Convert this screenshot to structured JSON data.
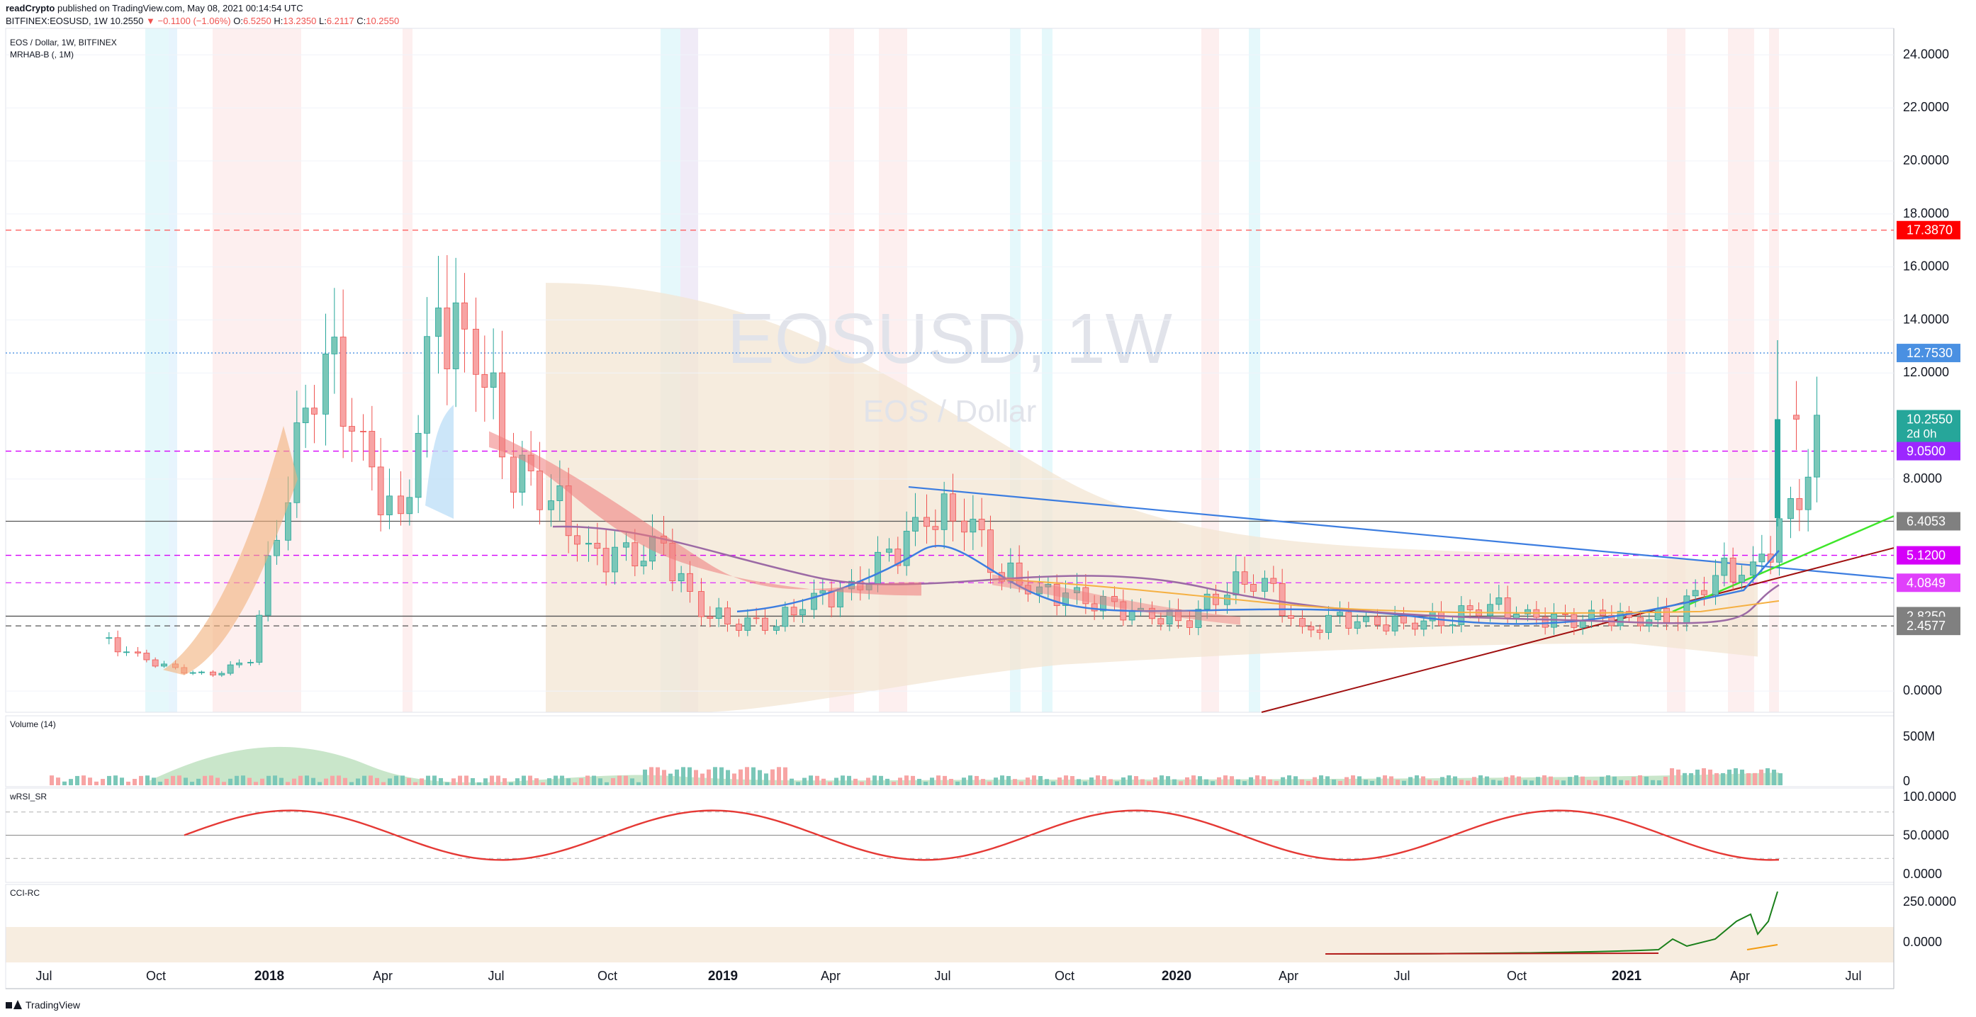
{
  "header": {
    "publisher": "readCrypto",
    "published_text": "published on TradingView.com, May 08, 2021 00:14:54 UTC",
    "symbol": "BITFINEX:EOSUSD, 1W",
    "last": "10.2550",
    "change": "▼ −0.1100 (−1.06%)",
    "o_label": "O:",
    "o": "6.5250",
    "h_label": "H:",
    "h": "13.2350",
    "l_label": "L:",
    "l": "6.2117",
    "c_label": "C:",
    "c": "10.2550"
  },
  "legend": {
    "title": "EOS / Dollar, 1W, BITFINEX",
    "indicator": "MRHAB-B (, 1M)"
  },
  "watermark": {
    "symbol": "EOSUSD, 1W",
    "name": "EOS / Dollar"
  },
  "panes": {
    "volume_title": "Volume (14)",
    "wrsi_title": "wRSI_SR",
    "cci_title": "CCI-RC"
  },
  "price_axis": {
    "ticks": [
      "24.0000",
      "22.0000",
      "20.0000",
      "18.0000",
      "16.0000",
      "14.0000",
      "12.0000",
      "8.0000",
      "0.0000"
    ],
    "ticks_values": [
      24,
      22,
      20,
      18,
      16,
      14,
      12,
      8,
      0
    ]
  },
  "time_axis": {
    "labels": [
      "Jul",
      "Oct",
      "2018",
      "Apr",
      "Jul",
      "Oct",
      "2019",
      "Apr",
      "Jul",
      "Oct",
      "2020",
      "Apr",
      "Jul",
      "Oct",
      "2021",
      "Apr",
      "Jul"
    ]
  },
  "price_labels": [
    {
      "text": "17.3870",
      "value": 17.387,
      "color": "#ff0000"
    },
    {
      "text": "12.7530",
      "value": 12.753,
      "color": "#4a90e2"
    },
    {
      "text": "10.2550",
      "sub": "2d 0h",
      "value": 10.255,
      "color": "#26a69a"
    },
    {
      "text": "9.0500",
      "value": 9.05,
      "color": "#9c27ff"
    },
    {
      "text": "6.4053",
      "value": 6.4053,
      "color": "#808080"
    },
    {
      "text": "5.1200",
      "value": 5.12,
      "color": "#d500f9"
    },
    {
      "text": "4.0849",
      "value": 4.0849,
      "color": "#e040fb"
    },
    {
      "text": "2.8250",
      "value": 2.825,
      "color": "#808080"
    },
    {
      "text": "2.4577",
      "value": 2.4577,
      "color": "#808080"
    }
  ],
  "volume_axis": [
    "500M",
    "0"
  ],
  "wrsi_axis": [
    "100.0000",
    "50.0000",
    "0.0000"
  ],
  "cci_axis": [
    "250.0000",
    "0.0000"
  ],
  "footer": {
    "brand": "TradingView"
  },
  "chart_data": {
    "type": "candlestick",
    "title": "EOS / Dollar, 1W, BITFINEX",
    "timeframe": "1W",
    "x_range": [
      "2017-07",
      "2021-07"
    ],
    "ylim": [
      -0.8,
      25
    ],
    "log_scale": false,
    "series": [
      {
        "name": "EOSUSD weekly close (approx.)",
        "x": [
          "2017-07",
          "2017-08",
          "2017-09",
          "2017-10",
          "2017-11",
          "2017-12",
          "2018-01",
          "2018-02",
          "2018-03",
          "2018-04",
          "2018-05",
          "2018-06",
          "2018-07",
          "2018-08",
          "2018-09",
          "2018-10",
          "2018-11",
          "2018-12",
          "2019-01",
          "2019-02",
          "2019-03",
          "2019-04",
          "2019-05",
          "2019-06",
          "2019-07",
          "2019-08",
          "2019-09",
          "2019-10",
          "2019-11",
          "2019-12",
          "2020-01",
          "2020-02",
          "2020-03",
          "2020-04",
          "2020-05",
          "2020-06",
          "2020-07",
          "2020-08",
          "2020-09",
          "2020-10",
          "2020-11",
          "2020-12",
          "2021-01",
          "2021-02",
          "2021-03",
          "2021-04",
          "2021-05"
        ],
        "values": [
          2.0,
          1.3,
          0.8,
          0.6,
          1.2,
          8.0,
          13.0,
          9.0,
          6.0,
          14.0,
          13.0,
          8.5,
          7.5,
          5.2,
          5.0,
          5.3,
          3.0,
          2.6,
          2.6,
          3.5,
          3.7,
          5.0,
          6.5,
          6.8,
          4.5,
          3.8,
          3.5,
          3.1,
          2.8,
          2.7,
          4.0,
          4.2,
          2.2,
          2.7,
          2.5,
          2.6,
          2.8,
          3.3,
          2.8,
          2.6,
          2.8,
          2.7,
          2.9,
          4.5,
          4.5,
          6.5,
          10.255
        ]
      }
    ],
    "horizontal_levels": [
      17.387,
      12.753,
      9.05,
      6.4053,
      5.12,
      4.0849,
      2.825,
      2.4577
    ],
    "volume_axis_max_label": "500M",
    "wrsi_levels": [
      100,
      50,
      0
    ],
    "cci_levels": [
      250,
      0
    ],
    "grid": true,
    "legend_placement": "top-left"
  }
}
